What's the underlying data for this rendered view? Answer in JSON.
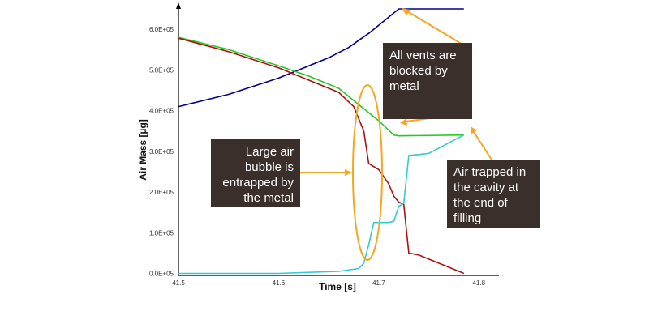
{
  "chart_data": {
    "type": "line",
    "title": "",
    "xlabel": "Time [s]",
    "ylabel": "Air Mass [µg]",
    "xlim": [
      41.5,
      41.82
    ],
    "ylim": [
      -5000,
      660000
    ],
    "x_ticks": [
      {
        "value": 41.5,
        "label": "41.5"
      },
      {
        "value": 41.6,
        "label": "41.6"
      },
      {
        "value": 41.7,
        "label": "41.7"
      },
      {
        "value": 41.8,
        "label": "41.8"
      }
    ],
    "y_ticks": [
      {
        "value": 0,
        "label": "0.0E+05"
      },
      {
        "value": 100000,
        "label": "1.0E+05"
      },
      {
        "value": 200000,
        "label": "2.0E+05"
      },
      {
        "value": 300000,
        "label": "3.0E+05"
      },
      {
        "value": 400000,
        "label": "4.0E+05"
      },
      {
        "value": 500000,
        "label": "5.0E+05"
      },
      {
        "value": 600000,
        "label": "6.0E+05"
      }
    ],
    "series": [
      {
        "color": "#00008b",
        "points": [
          [
            41.5,
            410000
          ],
          [
            41.55,
            440000
          ],
          [
            41.6,
            480000
          ],
          [
            41.65,
            530000
          ],
          [
            41.67,
            555000
          ],
          [
            41.69,
            590000
          ],
          [
            41.71,
            630000
          ],
          [
            41.72,
            650000
          ],
          [
            41.785,
            650000
          ]
        ]
      },
      {
        "color": "#22cc22",
        "points": [
          [
            41.5,
            580000
          ],
          [
            41.55,
            550000
          ],
          [
            41.6,
            510000
          ],
          [
            41.63,
            485000
          ],
          [
            41.66,
            455000
          ],
          [
            41.68,
            415000
          ],
          [
            41.7,
            375000
          ],
          [
            41.715,
            340000
          ],
          [
            41.72,
            338000
          ],
          [
            41.785,
            340000
          ]
        ]
      },
      {
        "color": "#b01010",
        "points": [
          [
            41.5,
            578000
          ],
          [
            41.55,
            545000
          ],
          [
            41.6,
            505000
          ],
          [
            41.63,
            475000
          ],
          [
            41.66,
            445000
          ],
          [
            41.675,
            410000
          ],
          [
            41.68,
            380000
          ],
          [
            41.685,
            350000
          ],
          [
            41.69,
            270000
          ],
          [
            41.7,
            255000
          ],
          [
            41.71,
            220000
          ],
          [
            41.715,
            190000
          ],
          [
            41.72,
            175000
          ],
          [
            41.725,
            170000
          ],
          [
            41.73,
            50000
          ],
          [
            41.74,
            45000
          ],
          [
            41.785,
            0
          ]
        ]
      },
      {
        "color": "#33cccc",
        "points": [
          [
            41.5,
            0
          ],
          [
            41.6,
            0
          ],
          [
            41.66,
            5000
          ],
          [
            41.68,
            12000
          ],
          [
            41.685,
            25000
          ],
          [
            41.69,
            70000
          ],
          [
            41.695,
            125000
          ],
          [
            41.71,
            125000
          ],
          [
            41.715,
            128000
          ],
          [
            41.72,
            165000
          ],
          [
            41.725,
            172000
          ],
          [
            41.73,
            290000
          ],
          [
            41.74,
            292000
          ],
          [
            41.75,
            295000
          ],
          [
            41.785,
            340000
          ]
        ]
      }
    ],
    "annotations": [
      {
        "text": "Large air bubble is entrapped by the metal"
      },
      {
        "text": "All vents are blocked by metal"
      },
      {
        "text": "Air trapped in the cavity at the end of filling"
      }
    ],
    "grid": false,
    "legend": "none"
  },
  "colors": {
    "callout_background": "#3b2f2b",
    "callout_text": "#ffffff",
    "arrow": "#f5a623"
  }
}
